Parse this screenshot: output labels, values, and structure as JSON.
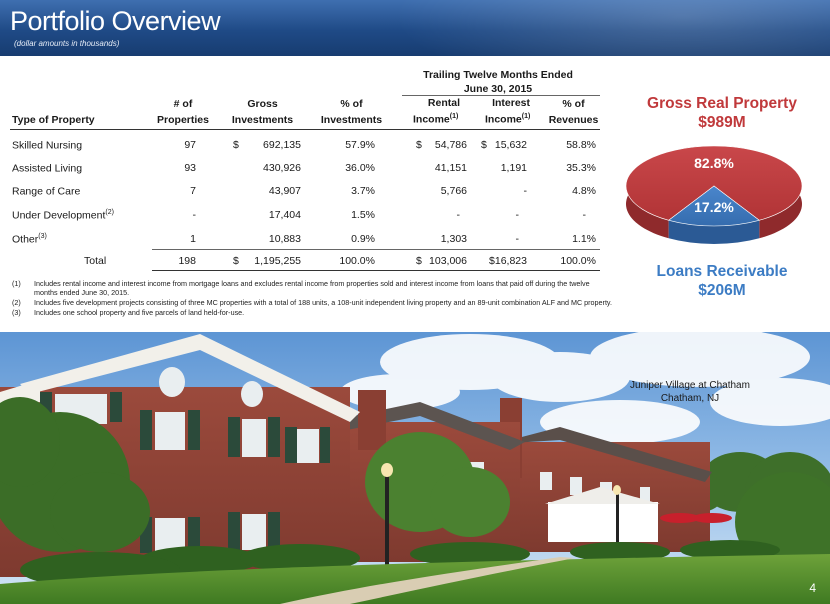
{
  "header": {
    "title": "Portfolio Overview",
    "subtitle": "(dollar amounts in thousands)"
  },
  "table": {
    "group_header_line1": "Trailing Twelve Months Ended",
    "group_header_line2": "June 30, 2015",
    "columns": {
      "type": "Type of Property",
      "num_a": "# of",
      "num_b": "Properties",
      "gross_a": "Gross",
      "gross_b": "Investments",
      "pct_a": "% of",
      "pct_b": "Investments",
      "rental_a": "Rental",
      "rental_b": "Income",
      "rental_sup": "(1)",
      "interest_a": "Interest",
      "interest_b": "Income",
      "interest_sup": "(1)",
      "rev_a": "% of",
      "rev_b": "Revenues"
    },
    "rows": [
      {
        "type": "Skilled Nursing",
        "sup": "",
        "count": "97",
        "gross_cur": "$",
        "gross": "692,135",
        "pct": "57.9%",
        "rental_cur": "$",
        "rental": "54,786",
        "interest_cur": "$",
        "interest": "15,632",
        "rev": "58.8%"
      },
      {
        "type": "Assisted Living",
        "sup": "",
        "count": "93",
        "gross_cur": "",
        "gross": "430,926",
        "pct": "36.0%",
        "rental_cur": "",
        "rental": "41,151",
        "interest_cur": "",
        "interest": "1,191",
        "rev": "35.3%"
      },
      {
        "type": "Range of Care",
        "sup": "",
        "count": "7",
        "gross_cur": "",
        "gross": "43,907",
        "pct": "3.7%",
        "rental_cur": "",
        "rental": "5,766",
        "interest_cur": "",
        "interest": "-",
        "rev": "4.8%"
      },
      {
        "type": "Under Development",
        "sup": "(2)",
        "count": "-",
        "gross_cur": "",
        "gross": "17,404",
        "pct": "1.5%",
        "rental_cur": "",
        "rental": "-",
        "interest_cur": "",
        "interest": "-",
        "rev": "-"
      },
      {
        "type": "Other",
        "sup": "(3)",
        "count": "1",
        "gross_cur": "",
        "gross": "10,883",
        "pct": "0.9%",
        "rental_cur": "",
        "rental": "1,303",
        "interest_cur": "",
        "interest": "-",
        "rev": "1.1%"
      }
    ],
    "total": {
      "type": "Total",
      "count": "198",
      "gross_cur": "$",
      "gross": "1,195,255",
      "pct": "100.0%",
      "rental_cur": "$",
      "rental": "103,006",
      "interest": "$16,823",
      "rev": "100.0%"
    }
  },
  "footnotes": [
    {
      "num": "(1)",
      "text": "Includes rental income and interest income from mortgage loans and excludes rental income from properties sold and interest income from loans that paid off during the twelve months ended June 30, 2015."
    },
    {
      "num": "(2)",
      "text": "Includes five development projects consisting of three MC properties with a total of 188 units, a 108-unit independent living property and an 89-unit combination ALF and MC property."
    },
    {
      "num": "(3)",
      "text": "Includes one school property and five parcels of land held-for-use."
    }
  ],
  "pie": {
    "title_line1": "Gross Real Property",
    "title_line2": "$989M",
    "footer_line1": "Loans Receivable",
    "footer_line2": "$206M"
  },
  "chart_data": {
    "type": "pie",
    "slices": [
      {
        "label": "82.8%",
        "value": 82.8,
        "color": "#c0393b"
      },
      {
        "label": "17.2%",
        "value": 17.2,
        "color": "#3d7ac2"
      }
    ]
  },
  "photo": {
    "caption_line1": "Juniper Village at Chatham",
    "caption_line2": "Chatham, NJ"
  },
  "page_number": "4"
}
